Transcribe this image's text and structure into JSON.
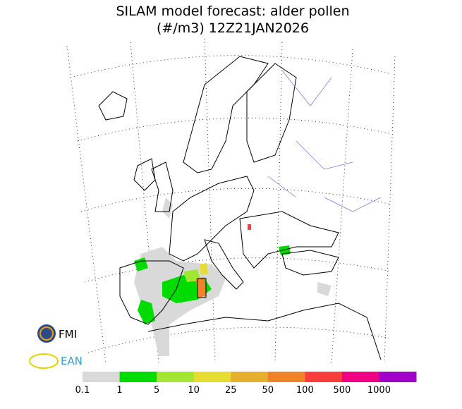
{
  "header": {
    "title_line1": "SILAM model forecast: alder pollen",
    "title_line2": "(#/m3) 12Z21JAN2026"
  },
  "logos": {
    "fmi": "FMI",
    "ean": "EAN"
  },
  "legend": {
    "items": [
      {
        "label": "0.1",
        "color": "#d9d9d9"
      },
      {
        "label": "1",
        "color": "#00dc00"
      },
      {
        "label": "5",
        "color": "#a0e632"
      },
      {
        "label": "10",
        "color": "#e6dc32"
      },
      {
        "label": "25",
        "color": "#e6af2d"
      },
      {
        "label": "50",
        "color": "#f08228"
      },
      {
        "label": "100",
        "color": "#fa3c3c"
      },
      {
        "label": "500",
        "color": "#f00082"
      },
      {
        "label": "1000",
        "color": "#a000c8"
      }
    ]
  }
}
